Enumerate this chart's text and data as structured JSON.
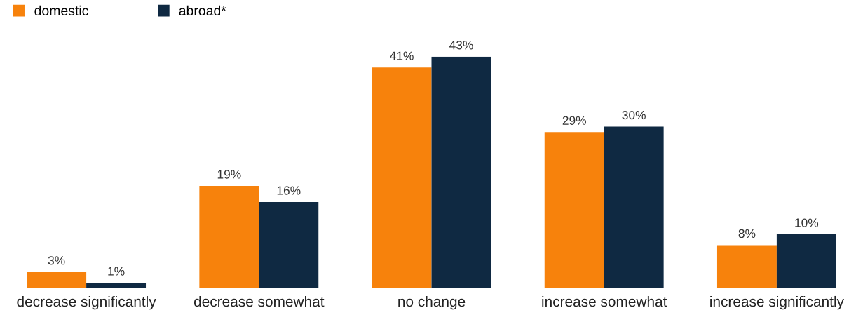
{
  "chart_data": {
    "type": "bar",
    "categories": [
      "decrease significantly",
      "decrease somewhat",
      "no change",
      "increase somewhat",
      "increase significantly"
    ],
    "series": [
      {
        "name": "domestic",
        "color": "#f7820c",
        "values": [
          3,
          19,
          41,
          29,
          8
        ],
        "value_labels": [
          "3%",
          "19%",
          "41%",
          "29%",
          "8%"
        ]
      },
      {
        "name": "abroad*",
        "color": "#0f2942",
        "values": [
          1,
          16,
          43,
          30,
          10
        ],
        "value_labels": [
          "1%",
          "16%",
          "43%",
          "30%",
          "10%"
        ]
      }
    ],
    "legend": "top left",
    "grid": false,
    "tick_labels": "x"
  }
}
